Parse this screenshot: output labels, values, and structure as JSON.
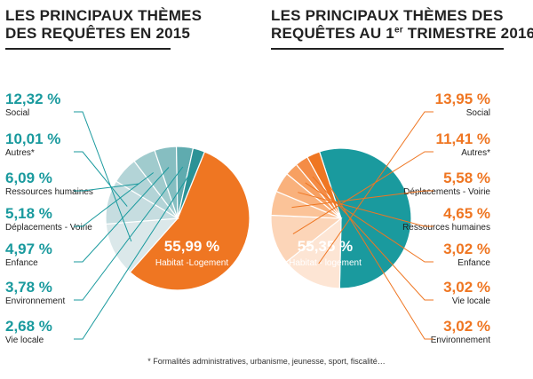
{
  "titles": {
    "left": {
      "line1": "LES PRINCIPAUX THÈMES",
      "line2": "DES REQUÊTES EN 2015"
    },
    "right": {
      "line1": "LES PRINCIPAUX THÈMES DES",
      "line2_a": "REQUÊTES AU 1",
      "line2_sup": "er",
      "line2_b": " TRIMESTRE 2016"
    }
  },
  "footnote": "* Formalités administratives, urbanisme, jeunesse, sport, fiscalité…",
  "colors": {
    "teal": "#1a9a9e",
    "orange": "#ef7622",
    "text": "#222222"
  },
  "chart_data": [
    {
      "type": "pie",
      "title": "LES PRINCIPAUX THÈMES DES REQUÊTES EN 2015",
      "slices": [
        {
          "label": "Habitat -Logement",
          "value": 55.99,
          "display": "55,99 %",
          "color": "#ef7622"
        },
        {
          "label": "Social",
          "value": 12.32,
          "display": "12,32 %",
          "color": "#dbe8ea"
        },
        {
          "label": "Autres*",
          "value": 10.01,
          "display": "10,01 %",
          "color": "#c6dde0"
        },
        {
          "label": "Ressources humaines",
          "value": 6.09,
          "display": "6,09 %",
          "color": "#b3d4d7"
        },
        {
          "label": "Déplacements - Voirie",
          "value": 5.18,
          "display": "5,18 %",
          "color": "#a0cbcd"
        },
        {
          "label": "Enfance",
          "value": 4.97,
          "display": "4,97 %",
          "color": "#86bec1"
        },
        {
          "label": "Environnement",
          "value": 3.78,
          "display": "3,78 %",
          "color": "#5fabaf"
        },
        {
          "label": "Vie locale",
          "value": 2.68,
          "display": "2,68 %",
          "color": "#2c9296"
        }
      ]
    },
    {
      "type": "pie",
      "title": "LES PRINCIPAUX THÈMES DES REQUÊTES AU 1er TRIMESTRE 2016",
      "slices": [
        {
          "label": "Habitat - logement",
          "value": 55.35,
          "display": "55,35 %",
          "color": "#1a9a9e"
        },
        {
          "label": "Social",
          "value": 13.95,
          "display": "13,95 %",
          "color": "#fde5d4"
        },
        {
          "label": "Autres*",
          "value": 11.41,
          "display": "11,41 %",
          "color": "#fcd5b8"
        },
        {
          "label": "Déplacements - Voirie",
          "value": 5.58,
          "display": "5,58 %",
          "color": "#fbc398"
        },
        {
          "label": "Ressources humaines",
          "value": 4.65,
          "display": "4,65 %",
          "color": "#f9b17c"
        },
        {
          "label": "Enfance",
          "value": 3.02,
          "display": "3,02 %",
          "color": "#f7a061"
        },
        {
          "label": "Vie locale",
          "value": 3.02,
          "display": "3,02 %",
          "color": "#f48c46"
        },
        {
          "label": "Environnement",
          "value": 3.02,
          "display": "3,02 %",
          "color": "#ef7622"
        }
      ]
    }
  ]
}
